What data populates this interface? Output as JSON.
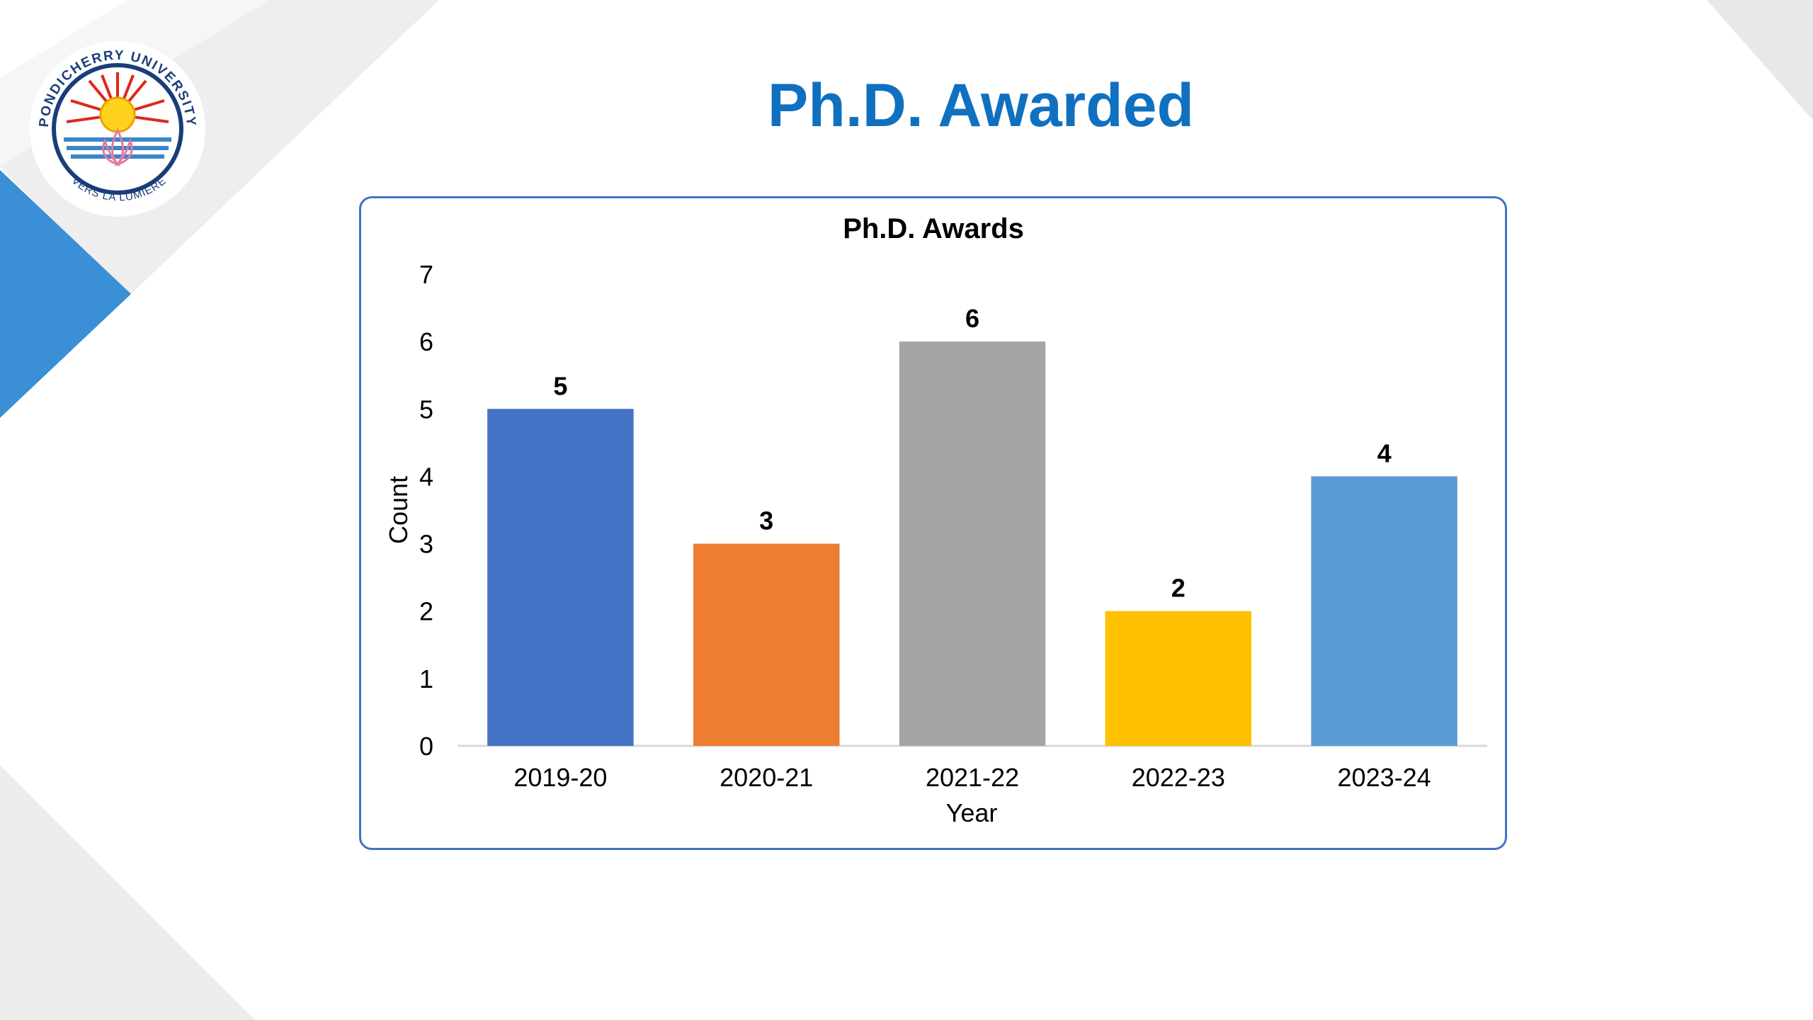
{
  "slide": {
    "title": "Ph.D. Awarded"
  },
  "logo": {
    "text_top": "PONDICHERRY UNIVERSITY",
    "text_bottom": "VERS LA LUMIERE"
  },
  "colors": {
    "title": "#1070c0",
    "frame_border": "#4472c4",
    "accent_triangle": "#3a8fd6",
    "grey_band": "#e6e6e6"
  },
  "chart_data": {
    "type": "bar",
    "title": "Ph.D. Awards",
    "xlabel": "Year",
    "ylabel": "Count",
    "categories": [
      "2019-20",
      "2020-21",
      "2021-22",
      "2022-23",
      "2023-24"
    ],
    "values": [
      5,
      3,
      6,
      2,
      4
    ],
    "data_labels": [
      "5",
      "3",
      "6",
      "2",
      "4"
    ],
    "bar_colors": [
      "#4472c4",
      "#ed7d31",
      "#a5a5a5",
      "#ffc000",
      "#5b9bd5"
    ],
    "ylim": [
      0,
      7
    ],
    "yticks": [
      0,
      1,
      2,
      3,
      4,
      5,
      6,
      7
    ],
    "grid": false,
    "legend": "none"
  }
}
